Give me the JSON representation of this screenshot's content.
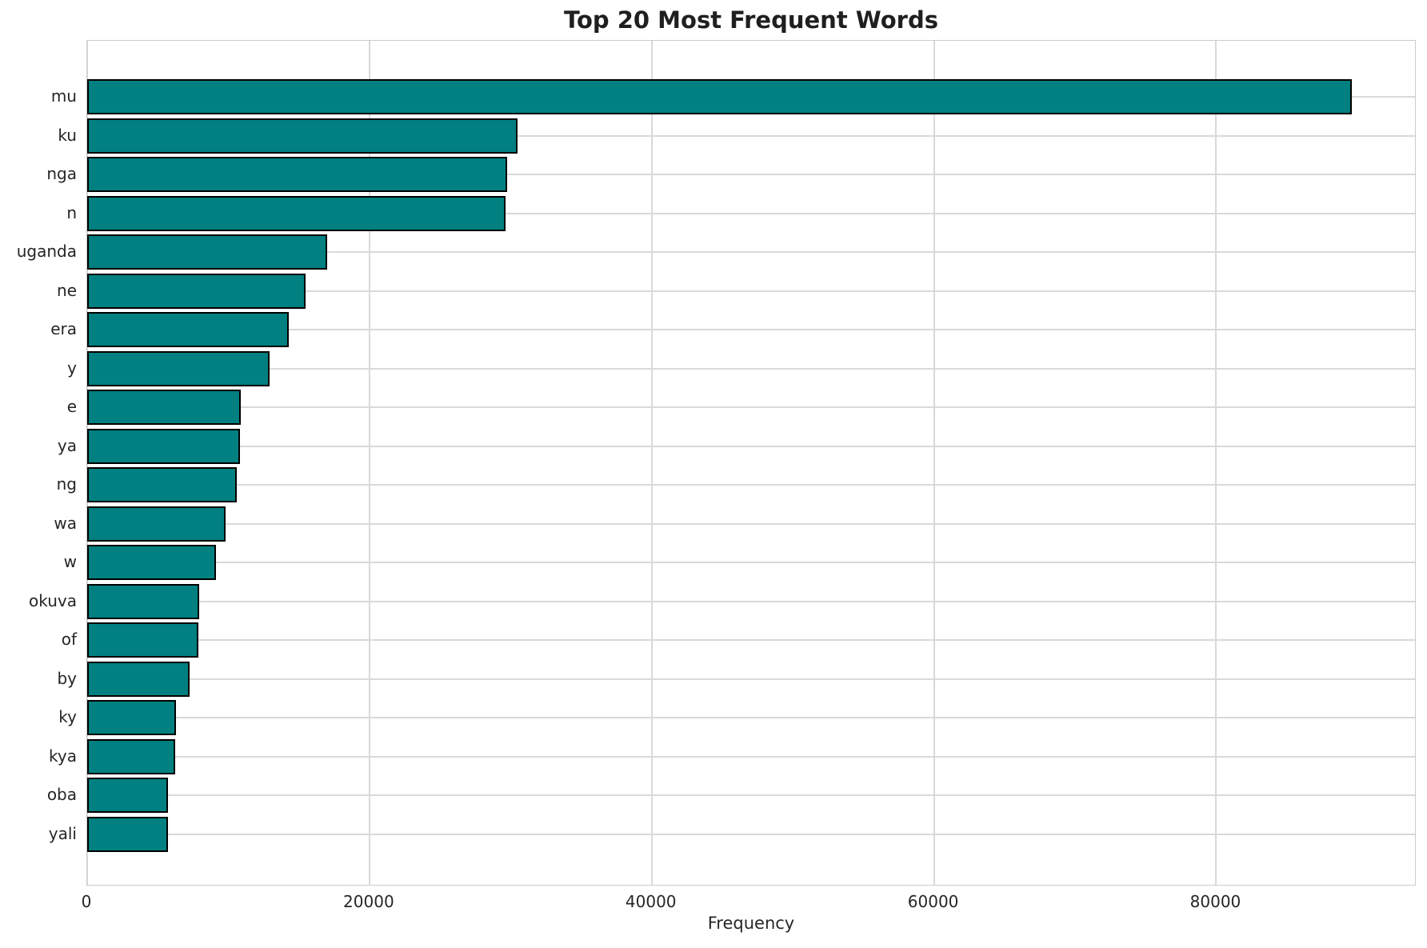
{
  "chart_data": {
    "type": "bar",
    "orientation": "horizontal",
    "title": "Top 20 Most Frequent Words",
    "xlabel": "Frequency",
    "ylabel": "",
    "categories": [
      "mu",
      "ku",
      "nga",
      "n",
      "uganda",
      "ne",
      "era",
      "y",
      "e",
      "ya",
      "ng",
      "wa",
      "w",
      "okuva",
      "of",
      "by",
      "ky",
      "kya",
      "oba",
      "yali"
    ],
    "values": [
      89600,
      30500,
      29750,
      29650,
      17000,
      15450,
      14300,
      12900,
      10900,
      10800,
      10600,
      9800,
      9100,
      7950,
      7900,
      7250,
      6300,
      6250,
      5750,
      5700
    ],
    "xlim": [
      0,
      94200
    ],
    "xticks": [
      0,
      20000,
      40000,
      60000,
      80000
    ],
    "xtick_labels": [
      "0",
      "20000",
      "40000",
      "60000",
      "80000"
    ],
    "grid": true,
    "legend_position": "none",
    "bar_color": "#008080",
    "bar_edge_color": "#000000",
    "grid_color": "#d9d9d9",
    "spine_color": "#cccccc",
    "text_color": "#262626",
    "background_color": "#ffffff"
  }
}
